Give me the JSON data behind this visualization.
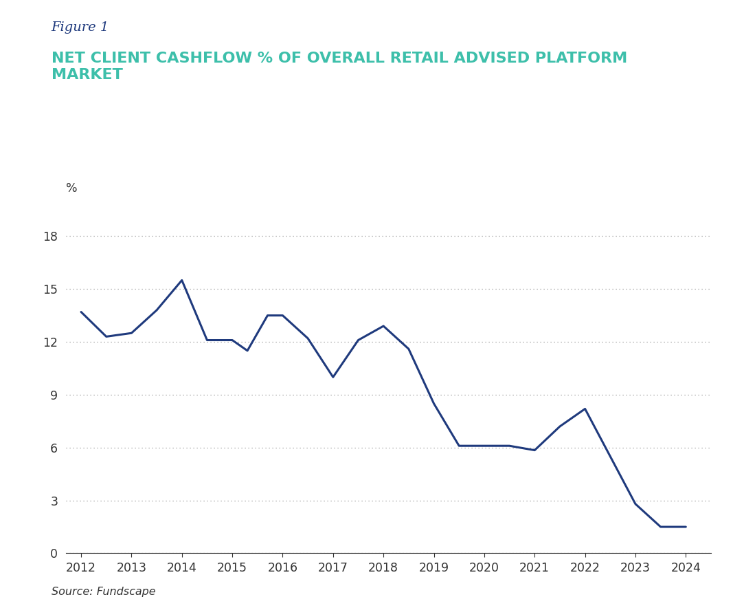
{
  "figure_label": "Figure 1",
  "title_line1": "NET CLIENT CASHFLOW % OF OVERALL RETAIL ADVISED PLATFORM",
  "title_line2": "MARKET",
  "ylabel": "%",
  "source": "Source: Fundscape",
  "line_color": "#1f3a7d",
  "line_width": 2.2,
  "background_color": "#ffffff",
  "x": [
    2012,
    2012.5,
    2013,
    2013.5,
    2014,
    2014.5,
    2015,
    2015.3,
    2015.7,
    2016,
    2016.5,
    2017,
    2017.5,
    2018,
    2018.5,
    2019,
    2019.5,
    2020,
    2020.5,
    2021,
    2021.5,
    2022,
    2022.5,
    2023,
    2023.5,
    2024
  ],
  "y": [
    13.7,
    12.3,
    12.5,
    13.8,
    15.5,
    12.1,
    12.1,
    11.5,
    13.5,
    13.5,
    12.2,
    10.0,
    12.1,
    12.9,
    11.6,
    8.5,
    6.1,
    6.1,
    6.1,
    5.85,
    7.2,
    8.2,
    5.5,
    2.8,
    1.5,
    1.5
  ],
  "yticks": [
    0,
    3,
    6,
    9,
    12,
    15,
    18
  ],
  "xticks": [
    2012,
    2013,
    2014,
    2015,
    2016,
    2017,
    2018,
    2019,
    2020,
    2021,
    2022,
    2023,
    2024
  ],
  "xlim": [
    2011.7,
    2024.5
  ],
  "ylim": [
    0,
    19.5
  ],
  "figure_label_color": "#1f3a7d",
  "title_color": "#3dbfaa"
}
